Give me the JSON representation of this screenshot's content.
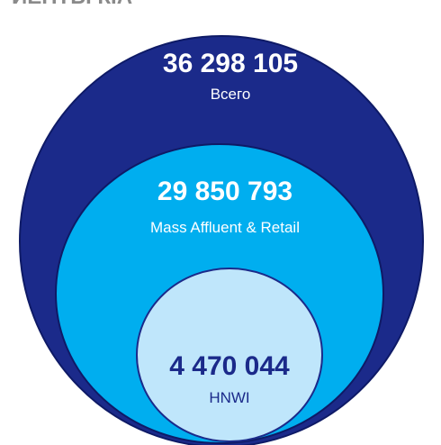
{
  "title": "ИЕНТЫ КІА",
  "circles": [
    {
      "value": "36 298 105",
      "label": "Всего"
    },
    {
      "value": "29 850 793",
      "label": "Mass Affluent & Retail"
    },
    {
      "value": "4 470 044",
      "label": "HNWI"
    }
  ]
}
